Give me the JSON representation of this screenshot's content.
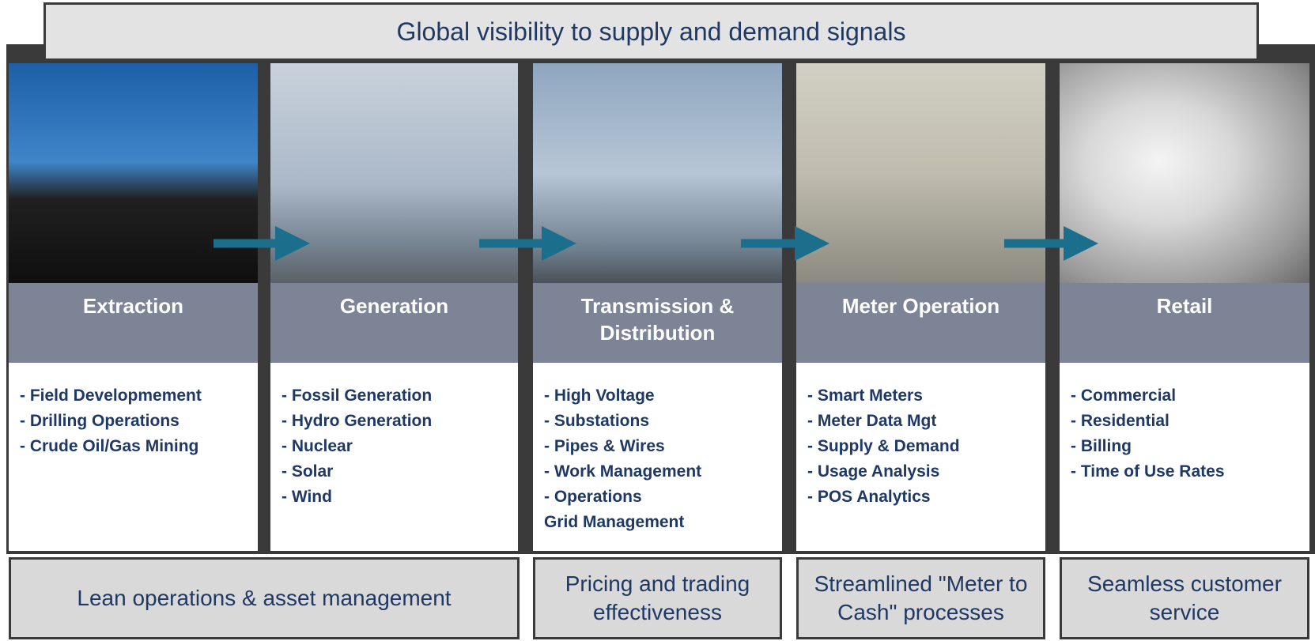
{
  "header": {
    "title": "Global visibility to supply and demand signals"
  },
  "columns": [
    {
      "title": "Extraction",
      "items": [
        "- Field Developmement",
        "- Drilling Operations",
        "- Crude Oil/Gas Mining"
      ]
    },
    {
      "title": "Generation",
      "items": [
        "- Fossil Generation",
        "- Hydro Generation",
        "- Nuclear",
        "- Solar",
        "- Wind"
      ]
    },
    {
      "title": "Transmission & Distribution",
      "items": [
        "-  High Voltage",
        "- Substations",
        "- Pipes & Wires",
        "- Work Management",
        "- Operations",
        " Grid Management"
      ]
    },
    {
      "title": "Meter Operation",
      "items": [
        "- Smart Meters",
        "- Meter Data Mgt",
        "- Supply & Demand",
        "- Usage Analysis",
        "- POS Analytics"
      ]
    },
    {
      "title": "Retail",
      "items": [
        "- Commercial",
        "- Residential",
        "- Billing",
        "- Time of Use Rates"
      ]
    }
  ],
  "footer": [
    "Lean operations & asset management",
    "Pricing and trading effectiveness",
    "Streamlined \"Meter to Cash\" processes",
    "Seamless customer service"
  ]
}
